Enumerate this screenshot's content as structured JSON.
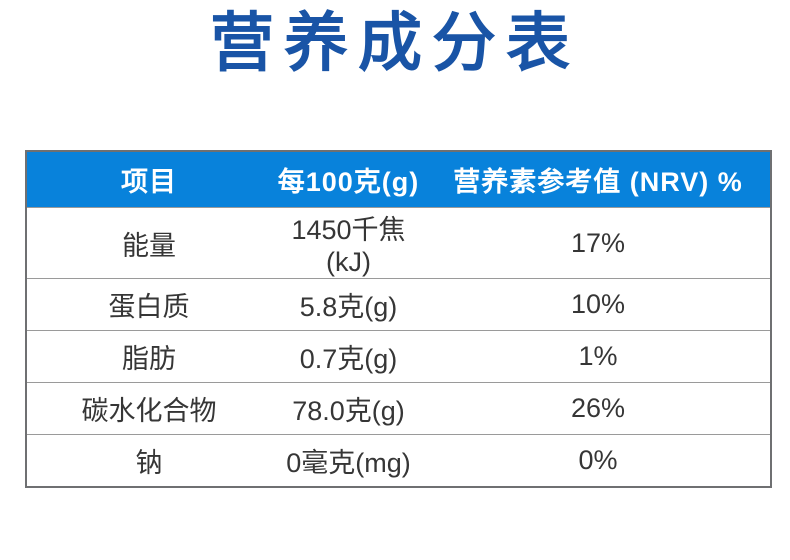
{
  "title": {
    "text": "营养成分表",
    "color": "#1954A6"
  },
  "table": {
    "border_color": "#6F7072",
    "row_line_color": "#9A9A9A",
    "header": {
      "bg_color": "#0882DB",
      "text_color": "#FFFFFF",
      "columns": [
        "项目",
        "每100克(g)",
        "营养素参考值 (NRV) %"
      ]
    },
    "rows": [
      {
        "item": "能量",
        "per100g": "1450千焦(kJ)",
        "nrv": "17%"
      },
      {
        "item": "蛋白质",
        "per100g": "5.8克(g)",
        "nrv": "10%"
      },
      {
        "item": "脂肪",
        "per100g": "0.7克(g)",
        "nrv": "1%"
      },
      {
        "item": "碳水化合物",
        "per100g": "78.0克(g)",
        "nrv": "26%"
      },
      {
        "item": "钠",
        "per100g": "0毫克(mg)",
        "nrv": "0%"
      }
    ]
  }
}
